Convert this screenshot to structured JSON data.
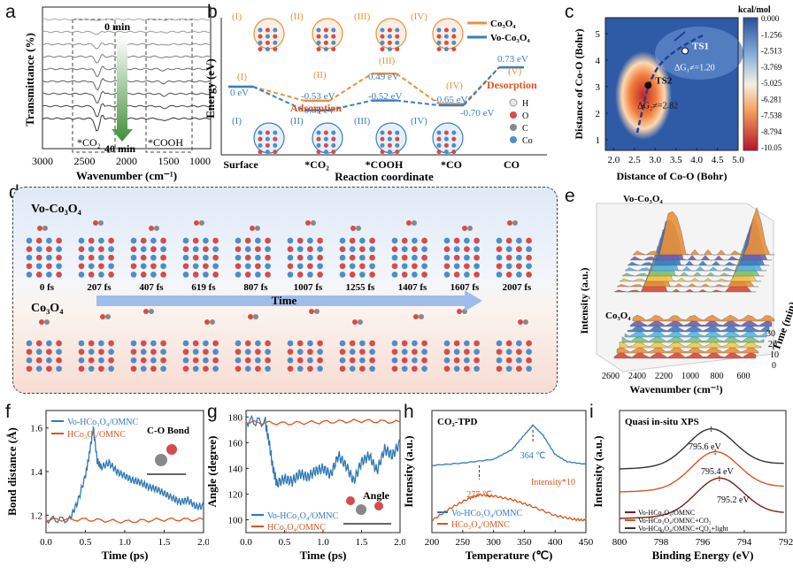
{
  "panels": {
    "a": "a",
    "b": "b",
    "c": "c",
    "d": "d",
    "e": "e",
    "f": "f",
    "g": "g",
    "h": "h",
    "i": "i"
  },
  "colors": {
    "co3o4": "#e8913a",
    "vo_co3o4": "#3a7ebf",
    "orange_red": "#d9541e",
    "blue": "#2f78b7",
    "arrow_green": "#3f8f3a",
    "time_arrow": "#4f86d4"
  },
  "chart_data": [
    {
      "panel": "a",
      "type": "line",
      "ylabel": "Transmittance (%)",
      "xlabel": "Wavenumber (cm⁻¹)",
      "xlim": [
        3000,
        1000
      ],
      "x_ticks": [
        "3000",
        "2500",
        "2000",
        "1500",
        "1000"
      ],
      "series_count": 9,
      "dips": [
        {
          "x": 2350,
          "label": "*CO₂"
        },
        {
          "x": 1560,
          "label": "*COOH"
        }
      ],
      "annotations": [
        "0 min",
        "40 min"
      ]
    },
    {
      "panel": "b",
      "type": "line",
      "ylabel": "Energy (eV)",
      "xlabel": "Reaction coordinate",
      "categories": [
        "Surface",
        "*CO₂",
        "*COOH",
        "*CO",
        "CO"
      ],
      "state_labels_top": [
        "(I)",
        "(II)",
        "(III)",
        "(IV)",
        "(V)"
      ],
      "state_labels_bottom": [
        "(I)",
        "(II)",
        "(III)",
        "(IV)"
      ],
      "legend": [
        "Co₃O₄",
        "Vo-Co₃O₄"
      ],
      "series": [
        {
          "name": "Co₃O₄",
          "values": [
            0,
            -0.53,
            0.49,
            -0.65,
            0.73
          ]
        },
        {
          "name": "Vo-Co₃O₄",
          "values": [
            0,
            -0.89,
            -0.52,
            -0.7,
            0.73
          ]
        }
      ],
      "value_labels": {
        "surface": "0 eV",
        "co3o4_co2": "-0.53 eV",
        "vo_co2": "-0.89 eV",
        "co3o4_cooh": "0.49 eV",
        "vo_cooh": "-0.52 eV",
        "co3o4_co": "-0.65 eV",
        "vo_co": "-0.70 eV",
        "co": "0.73 eV"
      },
      "annotations": {
        "adsorption": "Adsorption",
        "desorption": "Desorption"
      },
      "atom_legend": [
        "H",
        "O",
        "C",
        "Co"
      ]
    },
    {
      "panel": "c",
      "type": "heatmap",
      "xlabel": "Distance of Co-O (Bohr)",
      "ylabel": "Distance of Co-O (Bohr)",
      "xlim": [
        1.8,
        5.0
      ],
      "ylim": [
        0.6,
        5.6
      ],
      "x_ticks": [
        "2.0",
        "2.5",
        "3.0",
        "3.5",
        "4.0",
        "4.5",
        "5.0"
      ],
      "y_ticks": [
        "1",
        "2",
        "3",
        "4",
        "5"
      ],
      "colorbar_title": "kcal/mol",
      "colorbar_ticks": [
        "0.000",
        "-1.256",
        "-2.513",
        "-3.769",
        "-5.025",
        "-6.281",
        "-7.538",
        "-8.794",
        "-10.05"
      ],
      "points": [
        {
          "label": "TS1",
          "x": 3.72,
          "y": 4.35,
          "note": "ΔG₁≠=1.20"
        },
        {
          "label": "TS2",
          "x": 2.83,
          "y": 3.05,
          "note": "ΔG₂≠=2.82"
        }
      ]
    },
    {
      "panel": "d",
      "type": "table",
      "row_labels": [
        "Vo-Co₃O₄",
        "Co₃O₄"
      ],
      "times": [
        "0 fs",
        "207 fs",
        "407 fs",
        "619 fs",
        "807 fs",
        "1007 fs",
        "1255 fs",
        "1407 fs",
        "1607 fs",
        "2007 fs"
      ],
      "arrow_label": "Time"
    },
    {
      "panel": "e",
      "type": "area",
      "ylabel": "Intensity (a.u.)",
      "xlabel": "Wavenumber (cm⁻¹)",
      "zlabel": "Time (min)",
      "subplots": [
        "Vo-Co₃O₄",
        "Co₃O₄"
      ],
      "x_ticks": [
        "2600",
        "2400",
        "2200",
        "1000",
        "800",
        "600"
      ],
      "time_ticks": [
        "0",
        "10",
        "20",
        "30"
      ]
    },
    {
      "panel": "f",
      "type": "line",
      "ylabel": "Bond distance (Å)",
      "xlabel": "Time (ps)",
      "xlim": [
        0,
        2.0
      ],
      "ylim": [
        1.12,
        1.68
      ],
      "x_ticks": [
        "0.0",
        "0.5",
        "1.0",
        "1.5",
        "2.0"
      ],
      "y_ticks": [
        "1.2",
        "1.4",
        "1.6"
      ],
      "legend": [
        "Vo-HCo₃O₄/OMNC",
        "HCo₃O₄/OMNC"
      ],
      "inset_label": "C-O Bond",
      "series": [
        {
          "name": "Vo-HCo₃O₄/OMNC",
          "x": [
            0.0,
            0.3,
            0.4,
            0.5,
            0.55,
            0.6,
            0.65,
            0.7,
            0.8,
            0.9,
            1.0,
            1.1,
            1.2,
            1.3,
            1.4,
            1.5,
            1.6,
            1.7,
            1.8,
            1.9,
            2.0
          ],
          "values": [
            1.18,
            1.18,
            1.26,
            1.38,
            1.48,
            1.6,
            1.45,
            1.42,
            1.44,
            1.4,
            1.38,
            1.36,
            1.35,
            1.33,
            1.32,
            1.3,
            1.28,
            1.26,
            1.27,
            1.24,
            1.24
          ]
        },
        {
          "name": "HCo₃O₄/OMNC",
          "x": [
            0.0,
            0.5,
            1.0,
            1.5,
            2.0
          ],
          "values": [
            1.18,
            1.18,
            1.17,
            1.18,
            1.18
          ]
        }
      ]
    },
    {
      "panel": "g",
      "type": "line",
      "ylabel": "Angle (degree)",
      "xlabel": "Time (ps)",
      "xlim": [
        0,
        2.0
      ],
      "ylim": [
        90,
        185
      ],
      "x_ticks": [
        "0.0",
        "0.5",
        "1.0",
        "1.5",
        "2.0"
      ],
      "y_ticks": [
        "100",
        "120",
        "140",
        "160",
        "180"
      ],
      "legend": [
        "Vo-HCo₃O₄/OMNC",
        "HCo₃O₄/OMNC"
      ],
      "inset_label": "Angle",
      "series": [
        {
          "name": "Vo-HCo₃O₄/OMNC",
          "x": [
            0.0,
            0.25,
            0.3,
            0.35,
            0.4,
            0.5,
            0.6,
            0.7,
            0.8,
            0.9,
            1.0,
            1.1,
            1.2,
            1.3,
            1.4,
            1.5,
            1.6,
            1.7,
            1.8,
            1.9,
            2.0
          ],
          "values": [
            177,
            176,
            160,
            140,
            128,
            132,
            130,
            136,
            133,
            138,
            140,
            135,
            150,
            142,
            130,
            145,
            150,
            138,
            155,
            150,
            160
          ]
        },
        {
          "name": "HCo₃O₄/OMNC",
          "x": [
            0.0,
            0.5,
            1.0,
            1.5,
            2.0
          ],
          "values": [
            176,
            175,
            176,
            177,
            176
          ]
        }
      ]
    },
    {
      "panel": "h",
      "type": "line",
      "title": "CO₂-TPD",
      "ylabel": "Intensity (a.u.)",
      "xlabel": "Temperature (℃)",
      "xlim": [
        200,
        450
      ],
      "x_ticks": [
        "200",
        "250",
        "300",
        "350",
        "400",
        "450"
      ],
      "legend": [
        "Vo-HCo₃O₄/OMNC",
        "HCo₃O₄/OMNC"
      ],
      "peaks": [
        {
          "x": 364,
          "label": "364 ℃"
        },
        {
          "x": 277,
          "label": "277 ℃"
        }
      ],
      "annotation": "Intensity*10",
      "series": [
        {
          "name": "Vo-HCo₃O₄/OMNC",
          "x": [
            200,
            250,
            300,
            330,
            350,
            364,
            380,
            400,
            420,
            450
          ],
          "values": [
            0.55,
            0.57,
            0.6,
            0.68,
            0.8,
            0.88,
            0.8,
            0.64,
            0.58,
            0.56
          ]
        },
        {
          "name": "HCo₃O₄/OMNC",
          "x": [
            200,
            230,
            260,
            277,
            300,
            330,
            360,
            400,
            430,
            450
          ],
          "values": [
            0.1,
            0.2,
            0.28,
            0.31,
            0.3,
            0.27,
            0.22,
            0.14,
            0.11,
            0.1
          ]
        }
      ]
    },
    {
      "panel": "i",
      "type": "line",
      "title": "Quasi in-situ XPS",
      "ylabel": "Intensity (a.u.)",
      "xlabel": "Binding Energy (eV)",
      "xlim": [
        800,
        792
      ],
      "x_ticks": [
        "800",
        "798",
        "796",
        "794",
        "792"
      ],
      "peaks": [
        "795.6 eV",
        "795.4 eV",
        "795.2 eV"
      ],
      "legend": [
        "Vo-HCo₃O₄/OMNC",
        "Vo-HCo₃O₄/OMNC+CO₂",
        "Vo-HCo₃O₄/OMNC+CO₂+light"
      ],
      "series": [
        {
          "name": "Vo-HCo₃O₄/OMNC",
          "peak": 795.2
        },
        {
          "name": "Vo-HCo₃O₄/OMNC+CO₂",
          "peak": 795.4
        },
        {
          "name": "Vo-HCo₃O₄/OMNC+CO₂+light",
          "peak": 795.6
        }
      ]
    }
  ]
}
